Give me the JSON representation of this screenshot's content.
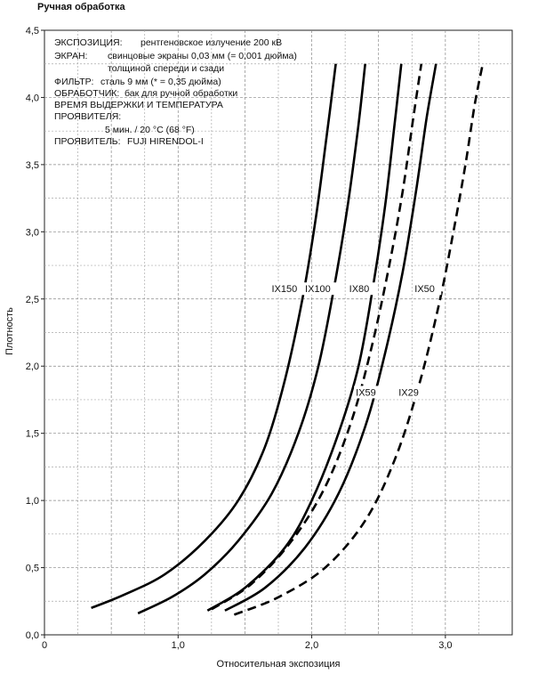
{
  "page_title": "Ручная обработка",
  "info_lines": [
    {
      "label": "ЭКСПОЗИЦИЯ:",
      "value": "рентгеновское излучение 200 кВ"
    },
    {
      "label": "ЭКРАН:",
      "value": "свинцовые экраны 0,03 мм (= 0,001 дюйма)"
    },
    {
      "label": "",
      "value": "толщиной спереди и сзади"
    },
    {
      "label": "ФИЛЬТР:",
      "value": "сталь 9 мм (* = 0,35 дюйма)"
    },
    {
      "label": "ОБРАБОТЧИК:",
      "value": "бак для ручной обработки"
    },
    {
      "label": "ВРЕМЯ ВЫДЕРЖКИ И ТЕМПЕРАТУРА",
      "value": ""
    },
    {
      "label": "ПРОЯВИТЕЛЯ:",
      "value": ""
    },
    {
      "label": "",
      "value": "5 мин. / 20 °C (68 °F)"
    },
    {
      "label": "ПРОЯВИТЕЛЬ:",
      "value": "FUJI HIRENDOL-I"
    }
  ],
  "chart_data": {
    "type": "line",
    "xlabel": "Относительная экспозиция",
    "ylabel": "Плотность",
    "xlim": [
      0,
      3.5
    ],
    "ylim": [
      0,
      4.5
    ],
    "x_ticks": [
      "0",
      "1,0",
      "2,0",
      "3,0"
    ],
    "y_ticks": [
      "0,0",
      "0,5",
      "1,0",
      "1,5",
      "2,0",
      "2,5",
      "3,0",
      "3,5",
      "4,0",
      "4,5"
    ],
    "grid": true,
    "series": [
      {
        "name": "IX150",
        "style": "solid",
        "x": [
          0.35,
          0.6,
          0.9,
          1.2,
          1.45,
          1.65,
          1.8,
          1.93,
          2.03,
          2.11,
          2.18
        ],
        "y": [
          0.2,
          0.3,
          0.45,
          0.7,
          1.0,
          1.4,
          1.9,
          2.5,
          3.1,
          3.7,
          4.25
        ]
      },
      {
        "name": "IX100",
        "style": "solid",
        "x": [
          0.7,
          0.95,
          1.2,
          1.45,
          1.7,
          1.9,
          2.05,
          2.17,
          2.27,
          2.35,
          2.4
        ],
        "y": [
          0.16,
          0.28,
          0.45,
          0.7,
          1.05,
          1.5,
          2.0,
          2.6,
          3.2,
          3.8,
          4.25
        ]
      },
      {
        "name": "IX80",
        "style": "solid",
        "x": [
          1.22,
          1.5,
          1.8,
          2.0,
          2.2,
          2.35,
          2.46,
          2.55,
          2.62,
          2.67
        ],
        "y": [
          0.18,
          0.35,
          0.65,
          1.0,
          1.5,
          2.0,
          2.6,
          3.2,
          3.8,
          4.25
        ]
      },
      {
        "name": "IX59",
        "style": "dashed",
        "x": [
          1.25,
          1.55,
          1.85,
          2.1,
          2.3,
          2.45,
          2.58,
          2.68,
          2.76,
          2.82
        ],
        "y": [
          0.19,
          0.38,
          0.7,
          1.1,
          1.6,
          2.15,
          2.75,
          3.3,
          3.85,
          4.25
        ]
      },
      {
        "name": "IX50",
        "style": "solid",
        "x": [
          1.35,
          1.65,
          1.95,
          2.2,
          2.4,
          2.55,
          2.68,
          2.78,
          2.86,
          2.93
        ],
        "y": [
          0.18,
          0.35,
          0.65,
          1.05,
          1.55,
          2.1,
          2.7,
          3.3,
          3.85,
          4.25
        ]
      },
      {
        "name": "IX29",
        "style": "dashed",
        "x": [
          1.42,
          1.75,
          2.1,
          2.4,
          2.62,
          2.8,
          2.95,
          3.06,
          3.15,
          3.22,
          3.28
        ],
        "y": [
          0.15,
          0.28,
          0.5,
          0.85,
          1.3,
          1.85,
          2.45,
          3.0,
          3.5,
          3.95,
          4.25
        ]
      }
    ],
    "series_labels": [
      {
        "name": "IX150",
        "x": 1.7,
        "y": 2.55
      },
      {
        "name": "IX100",
        "x": 1.95,
        "y": 2.55
      },
      {
        "name": "IX80",
        "x": 2.28,
        "y": 2.55
      },
      {
        "name": "IX50",
        "x": 2.77,
        "y": 2.55
      },
      {
        "name": "IX59",
        "x": 2.33,
        "y": 1.78
      },
      {
        "name": "IX29",
        "x": 2.65,
        "y": 1.78
      }
    ]
  }
}
